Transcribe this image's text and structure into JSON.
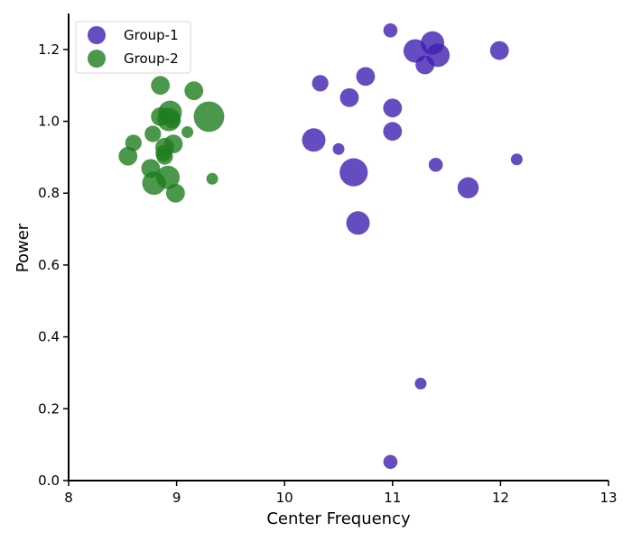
{
  "chart_data": {
    "type": "scatter",
    "title": "",
    "xlabel": "Center Frequency",
    "ylabel": "Power",
    "xlim": [
      8,
      13
    ],
    "ylim": [
      0,
      1.3
    ],
    "xticks": [
      8,
      9,
      10,
      11,
      12,
      13
    ],
    "yticks": [
      0.0,
      0.2,
      0.4,
      0.6,
      0.8,
      1.0,
      1.2
    ],
    "xtick_labels": [
      "8",
      "9",
      "10",
      "11",
      "12",
      "13"
    ],
    "ytick_labels": [
      "0.0",
      "0.2",
      "0.4",
      "0.6",
      "0.8",
      "1.0",
      "1.2"
    ],
    "grid": false,
    "legend": {
      "placement": "top-left",
      "entries": [
        "Group-1",
        "Group-2"
      ]
    },
    "series": [
      {
        "name": "Group-1",
        "color": "#3f1fb0",
        "points": [
          {
            "x": 10.98,
            "y": 1.253,
            "size": 3
          },
          {
            "x": 11.37,
            "y": 1.218,
            "size": 5
          },
          {
            "x": 11.21,
            "y": 1.196,
            "size": 5
          },
          {
            "x": 11.99,
            "y": 1.197,
            "size": 4
          },
          {
            "x": 11.42,
            "y": 1.184,
            "size": 5
          },
          {
            "x": 11.3,
            "y": 1.157,
            "size": 4
          },
          {
            "x": 10.75,
            "y": 1.125,
            "size": 4
          },
          {
            "x": 10.33,
            "y": 1.106,
            "size": 3.5
          },
          {
            "x": 10.6,
            "y": 1.066,
            "size": 4
          },
          {
            "x": 11.0,
            "y": 1.037,
            "size": 4
          },
          {
            "x": 11.0,
            "y": 0.972,
            "size": 4
          },
          {
            "x": 10.27,
            "y": 0.948,
            "size": 5
          },
          {
            "x": 10.5,
            "y": 0.923,
            "size": 2.5
          },
          {
            "x": 12.15,
            "y": 0.894,
            "size": 2.5
          },
          {
            "x": 11.4,
            "y": 0.879,
            "size": 3
          },
          {
            "x": 10.64,
            "y": 0.858,
            "size": 6
          },
          {
            "x": 11.7,
            "y": 0.815,
            "size": 4.5
          },
          {
            "x": 10.68,
            "y": 0.717,
            "size": 5
          },
          {
            "x": 11.26,
            "y": 0.27,
            "size": 2.5
          },
          {
            "x": 10.98,
            "y": 0.052,
            "size": 3
          }
        ]
      },
      {
        "name": "Group-2",
        "color": "#1e7d1e",
        "points": [
          {
            "x": 8.85,
            "y": 1.1,
            "size": 4
          },
          {
            "x": 9.16,
            "y": 1.085,
            "size": 4
          },
          {
            "x": 8.94,
            "y": 1.025,
            "size": 5
          },
          {
            "x": 9.3,
            "y": 1.013,
            "size": 6.5
          },
          {
            "x": 8.85,
            "y": 1.013,
            "size": 4
          },
          {
            "x": 8.93,
            "y": 1.005,
            "size": 5
          },
          {
            "x": 8.96,
            "y": 1.003,
            "size": 3.5
          },
          {
            "x": 9.1,
            "y": 0.97,
            "size": 2.5
          },
          {
            "x": 8.78,
            "y": 0.965,
            "size": 3.5
          },
          {
            "x": 8.97,
            "y": 0.937,
            "size": 4
          },
          {
            "x": 8.6,
            "y": 0.94,
            "size": 3.5
          },
          {
            "x": 8.89,
            "y": 0.928,
            "size": 4
          },
          {
            "x": 8.88,
            "y": 0.911,
            "size": 3.5
          },
          {
            "x": 8.55,
            "y": 0.903,
            "size": 4
          },
          {
            "x": 8.89,
            "y": 0.902,
            "size": 3.5
          },
          {
            "x": 8.76,
            "y": 0.869,
            "size": 4
          },
          {
            "x": 8.92,
            "y": 0.844,
            "size": 5
          },
          {
            "x": 9.33,
            "y": 0.84,
            "size": 2.5
          },
          {
            "x": 8.79,
            "y": 0.828,
            "size": 5
          },
          {
            "x": 8.99,
            "y": 0.8,
            "size": 4
          }
        ]
      }
    ]
  }
}
